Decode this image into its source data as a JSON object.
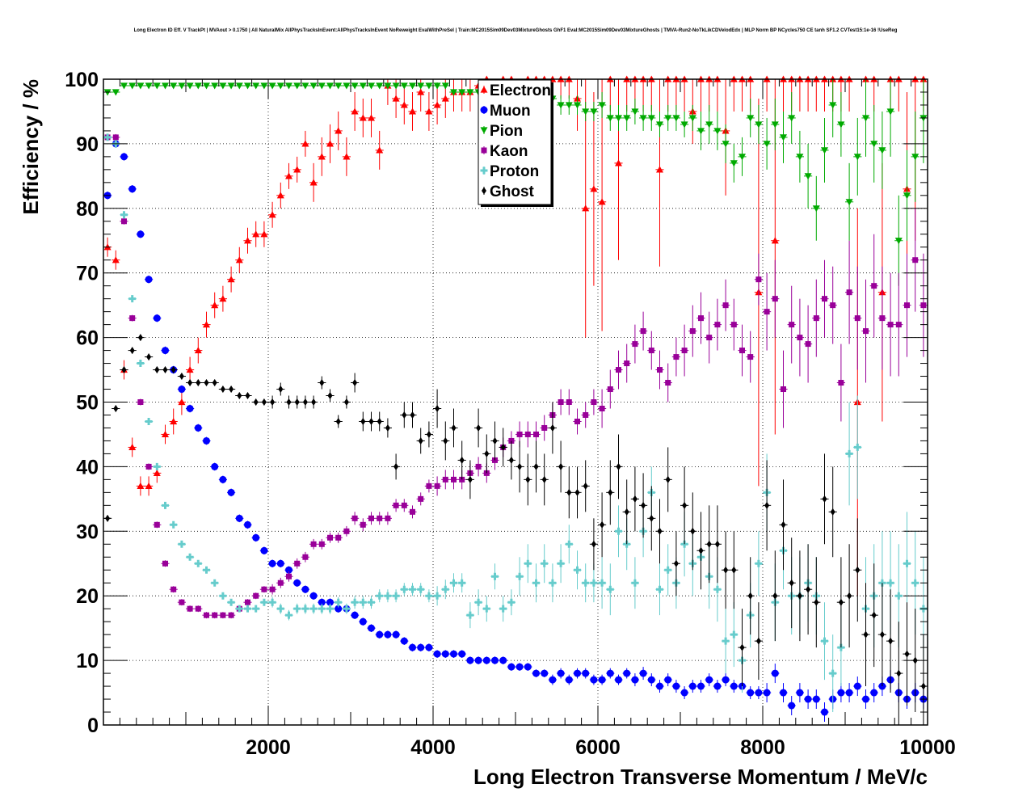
{
  "title": "Long Electron ID Eff. V TrackPt | MVAout > 0.1750 | All NaturalMix AllPhysTracksInEvent:AllPhysTracksInEvent NoReweight EvalWithPreSel | Train:MC2015Sim09Dev03MixtureGhosts GhF1 Eval:MC2015Sim09Dev03MixtureGhosts | TMVA-Run2-NoTkLikCDVelodEdx | MLP Norm BP NCycles750 CE tanh SF1.2 CVTest15:1e-16 !UseReg",
  "chart_data": {
    "type": "scatter",
    "xlabel": "Long Electron Transverse Momentum / MeV/c",
    "ylabel": "Efficiency / %",
    "xlim": [
      0,
      10000
    ],
    "ylim": [
      0,
      100
    ],
    "x_ticks": [
      2000,
      4000,
      6000,
      8000,
      10000
    ],
    "y_ticks": [
      0,
      10,
      20,
      30,
      40,
      50,
      60,
      70,
      80,
      90,
      100
    ],
    "grid": true,
    "legend_position": "top-center",
    "x": [
      50,
      150,
      250,
      350,
      450,
      550,
      650,
      750,
      850,
      950,
      1050,
      1150,
      1250,
      1350,
      1450,
      1550,
      1650,
      1750,
      1850,
      1950,
      2050,
      2150,
      2250,
      2350,
      2450,
      2550,
      2650,
      2750,
      2850,
      2950,
      3050,
      3150,
      3250,
      3350,
      3450,
      3550,
      3650,
      3750,
      3850,
      3950,
      4050,
      4150,
      4250,
      4350,
      4450,
      4550,
      4650,
      4750,
      4850,
      4950,
      5050,
      5150,
      5250,
      5350,
      5450,
      5550,
      5650,
      5750,
      5850,
      5950,
      6050,
      6150,
      6250,
      6350,
      6450,
      6550,
      6650,
      6750,
      6850,
      6950,
      7050,
      7150,
      7250,
      7350,
      7450,
      7550,
      7650,
      7750,
      7850,
      7950,
      8050,
      8150,
      8250,
      8350,
      8450,
      8550,
      8650,
      8750,
      8850,
      8950,
      9050,
      9150,
      9250,
      9350,
      9450,
      9550,
      9650,
      9750,
      9850,
      9950
    ],
    "series": [
      {
        "name": "Electron",
        "color": "#ff0000",
        "marker": "triangle-up",
        "values": [
          74,
          72,
          55,
          43,
          37,
          37,
          39,
          45,
          47,
          50,
          55,
          58,
          62,
          65,
          66,
          69,
          72,
          75,
          76,
          76,
          79,
          82,
          85,
          86,
          90,
          84,
          88,
          90,
          92,
          88,
          95,
          94,
          94,
          89,
          99,
          97,
          96,
          95,
          98,
          95,
          96,
          97,
          98,
          98,
          98,
          99,
          100,
          99,
          100,
          100,
          99,
          100,
          100,
          100,
          100,
          100,
          100,
          97,
          80,
          83,
          81,
          100,
          87,
          100,
          100,
          100,
          100,
          86,
          100,
          100,
          100,
          95,
          100,
          100,
          100,
          92,
          100,
          100,
          100,
          67,
          100,
          75,
          100,
          100,
          100,
          100,
          100,
          100,
          100,
          100,
          100,
          50,
          100,
          100,
          67,
          100,
          100,
          83,
          100,
          100
        ],
        "errors": [
          1.5,
          1.5,
          1.5,
          1.5,
          1.5,
          1.5,
          1.5,
          1.5,
          2,
          2,
          2,
          2,
          2,
          2,
          2,
          2,
          2,
          2,
          2,
          2,
          2,
          2,
          2,
          2,
          2,
          3,
          3,
          3,
          3,
          3,
          3,
          3,
          3,
          3,
          3,
          3,
          3,
          3,
          3,
          3,
          3,
          3,
          3,
          3,
          3,
          3,
          3,
          3,
          3,
          3,
          3,
          3,
          3,
          3,
          3,
          3,
          3,
          5,
          20,
          15,
          20,
          5,
          15,
          5,
          5,
          5,
          5,
          15,
          5,
          5,
          5,
          5,
          5,
          5,
          5,
          10,
          5,
          5,
          5,
          30,
          5,
          30,
          5,
          5,
          5,
          5,
          5,
          5,
          5,
          5,
          5,
          30,
          5,
          5,
          20,
          5,
          5,
          15,
          25,
          5
        ]
      },
      {
        "name": "Muon",
        "color": "#0000ff",
        "marker": "circle",
        "values": [
          82,
          90,
          88,
          83,
          76,
          69,
          63,
          58,
          55,
          52,
          49,
          46,
          44,
          40,
          38,
          36,
          32,
          31,
          29,
          27,
          25,
          25,
          24,
          22,
          21,
          20,
          19,
          19,
          18,
          18,
          17,
          16,
          15,
          14,
          14,
          14,
          13,
          12,
          12,
          12,
          11,
          11,
          11,
          11,
          10,
          10,
          10,
          10,
          10,
          9,
          9,
          9,
          8,
          8,
          7,
          8,
          7,
          8,
          8,
          7,
          7,
          8,
          7,
          8,
          7,
          8,
          7,
          6,
          7,
          6,
          5,
          6,
          6,
          7,
          6,
          7,
          6,
          6,
          5,
          5,
          5,
          8,
          5,
          3,
          5,
          4,
          4,
          2,
          4,
          5,
          5,
          6,
          4,
          5,
          6,
          7,
          5,
          4,
          5,
          4
        ],
        "errors": [
          0.6,
          0.6,
          0.6,
          0.6,
          0.6,
          0.6,
          0.6,
          0.6,
          0.6,
          0.6,
          0.6,
          0.6,
          0.6,
          0.6,
          0.6,
          0.6,
          0.6,
          0.6,
          0.6,
          0.6,
          0.6,
          0.6,
          0.6,
          0.6,
          0.6,
          0.6,
          0.6,
          0.6,
          0.6,
          0.6,
          0.6,
          0.6,
          0.6,
          0.6,
          0.6,
          0.6,
          0.6,
          0.6,
          0.6,
          0.6,
          0.6,
          0.6,
          0.6,
          0.6,
          0.6,
          0.6,
          0.6,
          0.6,
          0.6,
          0.6,
          0.6,
          0.6,
          0.6,
          0.6,
          0.8,
          0.8,
          0.8,
          0.8,
          0.8,
          0.8,
          0.8,
          0.8,
          0.8,
          0.8,
          1,
          1,
          1,
          1,
          1,
          1,
          1,
          1,
          1,
          1,
          1,
          1,
          1,
          1,
          1,
          1,
          1.5,
          1.5,
          1.5,
          1.5,
          1.5,
          1.5,
          1.5,
          1.5,
          1.5,
          1.5,
          1.5,
          1.5,
          1.5,
          1.5,
          1.5,
          1.5,
          1.5,
          1.5,
          1.5,
          1.5
        ]
      },
      {
        "name": "Pion",
        "color": "#00aa00",
        "marker": "triangle-down",
        "values": [
          98,
          98,
          99,
          99,
          99,
          99,
          99,
          99,
          99,
          99,
          99,
          99,
          99,
          99,
          99,
          99,
          99,
          99,
          99,
          99,
          99,
          99,
          99,
          99,
          99,
          99,
          99,
          99,
          99,
          99,
          99,
          99,
          99,
          99,
          99,
          99,
          99,
          99,
          99,
          99,
          99,
          99,
          98,
          98,
          98,
          98,
          98,
          98,
          98,
          98,
          98,
          98,
          97,
          97,
          97,
          96,
          96,
          96,
          95,
          95,
          96,
          94,
          94,
          94,
          95,
          94,
          94,
          93,
          94,
          94,
          93,
          94,
          92,
          93,
          92,
          90,
          87,
          88,
          94,
          93,
          90,
          93,
          91,
          94,
          88,
          85,
          80,
          89,
          96,
          93,
          81,
          88,
          94,
          90,
          89,
          95,
          75,
          82,
          88,
          94
        ],
        "errors": [
          0.2,
          0.2,
          0.2,
          0.2,
          0.2,
          0.2,
          0.2,
          0.2,
          0.2,
          0.2,
          0.2,
          0.2,
          0.2,
          0.2,
          0.2,
          0.2,
          0.2,
          0.2,
          0.2,
          0.2,
          0.2,
          0.2,
          0.2,
          0.2,
          0.2,
          0.2,
          0.2,
          0.2,
          0.2,
          0.2,
          0.2,
          0.2,
          0.2,
          0.2,
          0.2,
          0.2,
          0.2,
          0.2,
          0.2,
          0.2,
          0.5,
          0.5,
          0.5,
          0.5,
          0.5,
          0.5,
          0.5,
          0.5,
          0.5,
          0.5,
          1,
          1,
          1,
          1,
          1,
          1.5,
          1.5,
          1.5,
          1.5,
          1.5,
          2,
          2,
          2,
          2,
          2,
          2,
          2,
          2,
          2,
          2,
          2,
          2,
          3,
          3,
          3,
          3,
          3,
          3,
          3,
          3,
          4,
          4,
          4,
          4,
          4,
          5,
          5,
          5,
          5,
          5,
          6,
          6,
          6,
          6,
          6,
          7,
          7,
          7,
          7,
          7
        ]
      },
      {
        "name": "Kaon",
        "color": "#990099",
        "marker": "square",
        "values": [
          91,
          91,
          78,
          63,
          50,
          40,
          31,
          25,
          21,
          19,
          18,
          18,
          17,
          17,
          17,
          17,
          18,
          19,
          20,
          21,
          21,
          22,
          23,
          25,
          26,
          28,
          28,
          29,
          29,
          30,
          32,
          31,
          32,
          32,
          32,
          34,
          34,
          33,
          35,
          37,
          37,
          38,
          38,
          38,
          39,
          40,
          39,
          41,
          43,
          44,
          45,
          45,
          45,
          46,
          48,
          50,
          50,
          47,
          48,
          50,
          49,
          52,
          55,
          56,
          59,
          61,
          58,
          55,
          53,
          57,
          58,
          61,
          63,
          60,
          62,
          65,
          62,
          58,
          57,
          69,
          64,
          66,
          52,
          62,
          60,
          59,
          63,
          66,
          65,
          53,
          67,
          63,
          61,
          68,
          63,
          62,
          62,
          65,
          72,
          65
        ],
        "errors": [
          0.5,
          0.5,
          0.5,
          0.5,
          0.5,
          0.5,
          0.5,
          0.5,
          0.5,
          0.5,
          0.5,
          0.5,
          0.5,
          0.5,
          0.5,
          0.5,
          0.5,
          0.5,
          0.5,
          0.5,
          0.8,
          0.8,
          0.8,
          0.8,
          0.8,
          0.8,
          0.8,
          0.8,
          0.8,
          0.8,
          1,
          1,
          1,
          1,
          1,
          1,
          1,
          1,
          1,
          1,
          1.5,
          1.5,
          1.5,
          1.5,
          1.5,
          1.5,
          1.5,
          1.5,
          1.5,
          1.5,
          2,
          2,
          2,
          2,
          2,
          2,
          2,
          2,
          2,
          2,
          3,
          3,
          3,
          3,
          3,
          3,
          3,
          3,
          3,
          3,
          4,
          4,
          4,
          4,
          4,
          4,
          4,
          4,
          4,
          4,
          6,
          6,
          6,
          6,
          6,
          6,
          6,
          6,
          6,
          6,
          8,
          8,
          8,
          8,
          8,
          8,
          8,
          8,
          8,
          8
        ]
      },
      {
        "name": "Proton",
        "color": "#66cccc",
        "marker": "cross",
        "values": [
          91,
          90,
          79,
          66,
          56,
          47,
          40,
          34,
          31,
          28,
          26,
          25,
          24,
          22,
          20,
          19,
          18,
          18,
          18,
          19,
          19,
          18,
          17,
          18,
          18,
          18,
          18,
          18,
          19,
          18,
          19,
          19,
          19,
          20,
          20,
          20,
          21,
          21,
          21,
          20,
          20,
          21,
          22,
          22,
          17,
          19,
          18,
          23,
          18,
          19,
          23,
          25,
          22,
          25,
          22,
          25,
          28,
          24,
          22,
          22,
          22,
          21,
          30,
          28,
          22,
          30,
          36,
          21,
          24,
          22,
          28,
          25,
          26,
          23,
          21,
          13,
          14,
          10,
          17,
          25,
          36,
          19,
          27,
          20,
          20,
          22,
          20,
          13,
          8,
          12,
          42,
          43,
          18,
          20,
          22,
          22,
          20,
          25,
          22,
          18
        ],
        "errors": [
          0.5,
          0.5,
          0.5,
          0.5,
          0.5,
          0.5,
          0.5,
          0.5,
          0.5,
          0.5,
          0.5,
          0.5,
          0.5,
          0.5,
          0.5,
          0.5,
          0.5,
          0.5,
          0.5,
          0.5,
          0.8,
          0.8,
          0.8,
          0.8,
          0.8,
          0.8,
          0.8,
          0.8,
          0.8,
          0.8,
          1,
          1,
          1,
          1,
          1,
          1,
          1,
          1,
          1,
          1,
          1.5,
          1.5,
          1.5,
          1.5,
          2,
          2,
          2,
          2,
          2,
          2,
          3,
          3,
          3,
          3,
          3,
          3,
          3,
          3,
          3,
          3,
          4,
          4,
          4,
          4,
          4,
          4,
          4,
          4,
          4,
          4,
          5,
          5,
          5,
          5,
          5,
          5,
          5,
          5,
          5,
          5,
          6,
          6,
          6,
          6,
          6,
          6,
          6,
          6,
          6,
          6,
          8,
          8,
          8,
          8,
          8,
          8,
          8,
          8,
          8,
          8
        ]
      },
      {
        "name": "Ghost",
        "color": "#000000",
        "marker": "diamond",
        "values": [
          32,
          49,
          55,
          58,
          60,
          57,
          55,
          55,
          55,
          54,
          53,
          53,
          53,
          53,
          52,
          52,
          51,
          51,
          50,
          50,
          50,
          52,
          50,
          50,
          50,
          50,
          53,
          51,
          47,
          50,
          53,
          47,
          47,
          47,
          46,
          40,
          48,
          48,
          44,
          45,
          49,
          44,
          46,
          41,
          38,
          46,
          42,
          44,
          43,
          41,
          40,
          38,
          40,
          38,
          46,
          40,
          36,
          36,
          37,
          28,
          31,
          36,
          40,
          33,
          35,
          34,
          32,
          30,
          38,
          25,
          34,
          30,
          27,
          28,
          28,
          24,
          24,
          12,
          20,
          13,
          34,
          20,
          31,
          22,
          20,
          21,
          19,
          35,
          33,
          19,
          20,
          24,
          14,
          17,
          14,
          13,
          8,
          11,
          10,
          6
        ],
        "errors": [
          0.5,
          0.5,
          0.5,
          0.5,
          0.5,
          0.5,
          0.5,
          0.5,
          0.5,
          0.5,
          0.5,
          0.5,
          0.5,
          0.5,
          0.5,
          0.5,
          0.5,
          0.5,
          0.5,
          0.5,
          1,
          1,
          1,
          1,
          1,
          1,
          1,
          1,
          1,
          1,
          1.5,
          1.5,
          1.5,
          1.5,
          1.5,
          2,
          2,
          2,
          2,
          2,
          3,
          3,
          3,
          3,
          3,
          3,
          3,
          3,
          3,
          3,
          4,
          4,
          4,
          4,
          4,
          4,
          4,
          4,
          4,
          4,
          5,
          5,
          5,
          5,
          5,
          5,
          5,
          5,
          5,
          5,
          6,
          6,
          6,
          6,
          6,
          6,
          6,
          6,
          6,
          6,
          7,
          7,
          7,
          7,
          7,
          7,
          7,
          7,
          7,
          7,
          8,
          8,
          8,
          8,
          8,
          8,
          8,
          8,
          8,
          8
        ]
      }
    ]
  }
}
